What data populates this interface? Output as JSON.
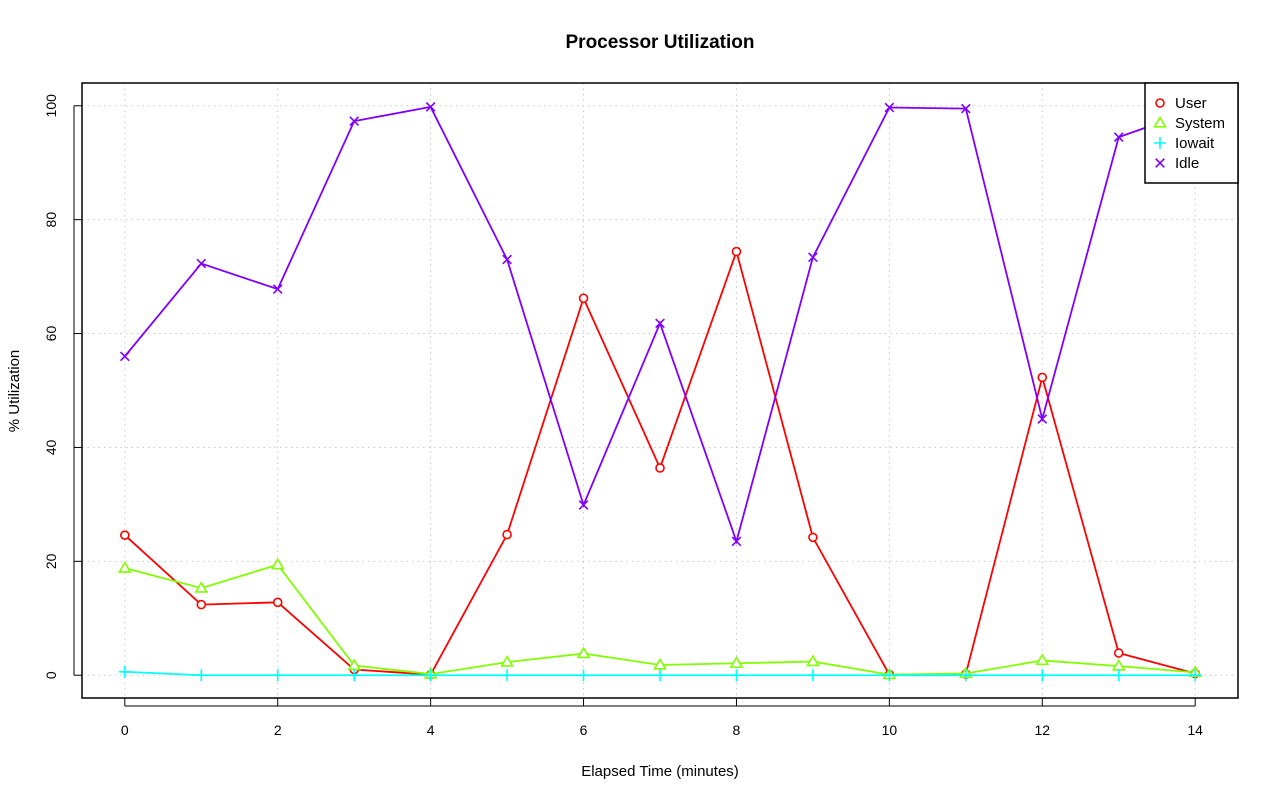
{
  "chart_data": {
    "type": "line",
    "title": "Processor Utilization",
    "xlabel": "Elapsed Time (minutes)",
    "ylabel": "% Utilization",
    "x": [
      0,
      1,
      2,
      3,
      4,
      5,
      6,
      7,
      8,
      9,
      10,
      11,
      12,
      13,
      14
    ],
    "xlim": [
      -0.56,
      14.56
    ],
    "ylim": [
      -4,
      104
    ],
    "xticks": [
      "0",
      "2",
      "4",
      "6",
      "8",
      "10",
      "12",
      "14"
    ],
    "yticks": [
      "0",
      "20",
      "40",
      "60",
      "80",
      "100"
    ],
    "grid": true,
    "legend_position": "top-right",
    "series": [
      {
        "name": "User",
        "color": "#ff0000",
        "marker": "circle",
        "values": [
          24.6,
          12.4,
          12.8,
          1.0,
          0.1,
          24.7,
          66.2,
          36.4,
          74.4,
          24.2,
          0.1,
          0.2,
          52.3,
          3.9,
          0.3
        ]
      },
      {
        "name": "System",
        "color": "#80ff00",
        "marker": "triangle",
        "values": [
          18.8,
          15.3,
          19.4,
          1.7,
          0.2,
          2.3,
          3.8,
          1.8,
          2.1,
          2.4,
          0.1,
          0.3,
          2.6,
          1.6,
          0.5
        ]
      },
      {
        "name": "Iowait",
        "color": "#00ffff",
        "marker": "plus",
        "values": [
          0.6,
          0.0,
          0.0,
          0.0,
          0.0,
          0.0,
          0.0,
          0.0,
          0.0,
          0.0,
          0.0,
          0.0,
          0.0,
          0.0,
          0.0
        ]
      },
      {
        "name": "Idle",
        "color": "#8000ff",
        "marker": "cross",
        "values": [
          56.0,
          72.3,
          67.8,
          97.3,
          99.8,
          73.0,
          29.9,
          61.8,
          23.5,
          73.4,
          99.7,
          99.5,
          45.0,
          94.5,
          99.2
        ]
      }
    ]
  }
}
